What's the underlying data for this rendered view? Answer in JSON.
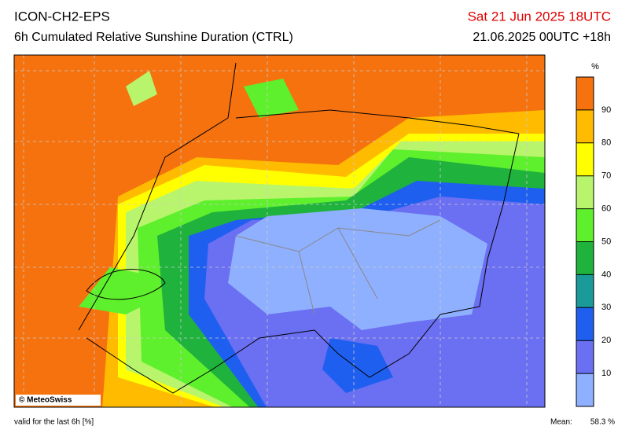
{
  "header": {
    "title": "ICON-CH2-EPS",
    "subtitle": "6h Cumulated Relative Sunshine Duration (CTRL)",
    "date": "Sat 21 Jun 2025 18UTC",
    "run": "21.06.2025 00UTC +18h"
  },
  "colorbar": {
    "unit": "%",
    "range": [
      0,
      100
    ],
    "ticks": [
      10,
      20,
      30,
      40,
      50,
      60,
      70,
      80,
      90
    ],
    "colors": [
      "#8fb0ff",
      "#6b6ff2",
      "#1f5ff0",
      "#1a9a98",
      "#1fb23c",
      "#5ef02c",
      "#b8f56c",
      "#ffff00",
      "#ffbb00",
      "#f5720f"
    ]
  },
  "footer": {
    "copyright": "© MeteoSwiss",
    "validity": "valid for the last 6h [%]",
    "mean_label": "Mean:",
    "mean_value": "58.3 %"
  }
}
